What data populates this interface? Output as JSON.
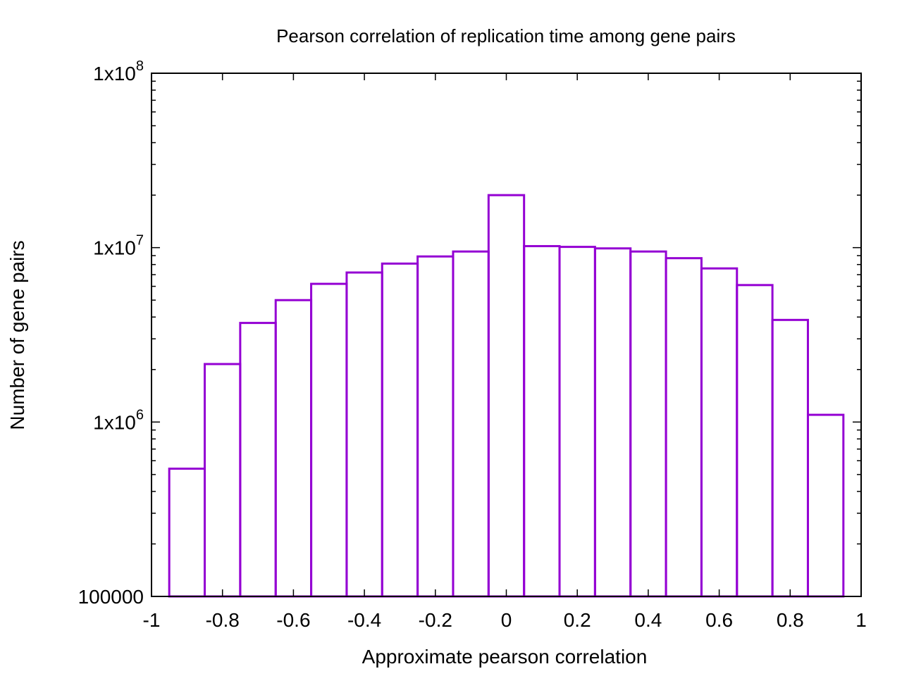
{
  "chart_data": {
    "type": "bar",
    "title": "Pearson correlation of replication time among gene pairs",
    "xlabel": "Approximate pearson correlation",
    "ylabel": "Number of gene pairs",
    "yscale": "log",
    "xlim": [
      -1,
      1
    ],
    "ylim": [
      100000,
      100000000
    ],
    "xticks": [
      -1,
      -0.8,
      -0.6,
      -0.4,
      -0.2,
      0,
      0.2,
      0.4,
      0.6,
      0.8,
      1
    ],
    "xtick_labels": [
      "-1",
      "-0.8",
      "-0.6",
      "-0.4",
      "-0.2",
      "0",
      "0.2",
      "0.4",
      "0.6",
      "0.8",
      "1"
    ],
    "yticks": [
      {
        "value": 100000,
        "label": "100000",
        "base": "",
        "exp": ""
      },
      {
        "value": 1000000,
        "label": "",
        "base": "1x10",
        "exp": "6"
      },
      {
        "value": 10000000,
        "label": "",
        "base": "1x10",
        "exp": "7"
      },
      {
        "value": 100000000,
        "label": "",
        "base": "1x10",
        "exp": "8"
      }
    ],
    "bin_width": 0.1,
    "bars_color": "#9400d3",
    "bin_centers": [
      -0.9,
      -0.8,
      -0.7,
      -0.6,
      -0.5,
      -0.4,
      -0.3,
      -0.2,
      -0.1,
      0.0,
      0.1,
      0.2,
      0.3,
      0.4,
      0.5,
      0.6,
      0.7,
      0.8,
      0.9
    ],
    "values": [
      540000,
      2150000,
      3700000,
      5000000,
      6200000,
      7200000,
      8100000,
      8900000,
      9500000,
      20000000,
      10200000,
      10100000,
      9900000,
      9500000,
      8700000,
      7600000,
      6100000,
      3850000,
      1100000
    ],
    "grid": false,
    "legend": "none"
  }
}
